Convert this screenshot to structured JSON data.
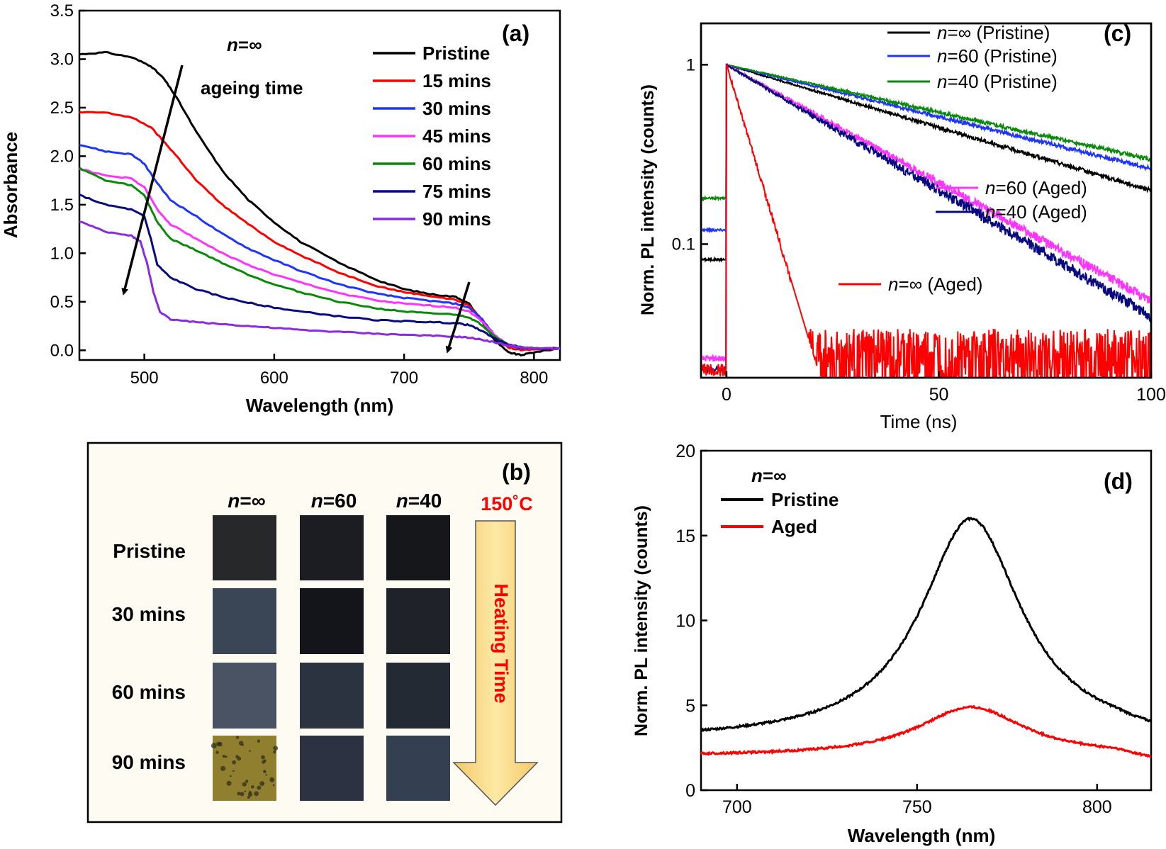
{
  "chart_data": [
    {
      "panel": "(a)",
      "type": "line",
      "xlabel": "Wavelength (nm)",
      "ylabel": "Absorbance",
      "xlim": [
        450,
        820
      ],
      "ylim": [
        -0.1,
        3.5
      ],
      "xticks": [
        500,
        600,
        700,
        800
      ],
      "yticks": [
        0.0,
        0.5,
        1.0,
        1.5,
        2.0,
        2.5,
        3.0,
        3.5
      ],
      "ytick_labels": [
        "0.0",
        "0.5",
        "1.0",
        "1.5",
        "2.0",
        "2.5",
        "3.0",
        "3.5"
      ],
      "annotation_n": "n",
      "annotation_n_value": "=∞",
      "annotation_text": "ageing time",
      "legend_position": "top-right",
      "series": [
        {
          "name": "Pristine",
          "color": "#000000",
          "x": [
            450,
            470,
            490,
            505,
            515,
            525,
            540,
            560,
            580,
            600,
            620,
            650,
            680,
            700,
            720,
            740,
            750,
            760,
            770,
            780,
            790,
            800,
            820
          ],
          "y": [
            3.05,
            3.07,
            3.02,
            2.93,
            2.8,
            2.6,
            2.25,
            1.85,
            1.55,
            1.32,
            1.12,
            0.9,
            0.72,
            0.63,
            0.58,
            0.55,
            0.48,
            0.3,
            0.1,
            -0.02,
            -0.05,
            -0.02,
            0.02
          ]
        },
        {
          "name": "15 mins",
          "color": "#ff0000",
          "x": [
            450,
            470,
            490,
            505,
            515,
            525,
            540,
            560,
            580,
            600,
            620,
            650,
            680,
            700,
            720,
            740,
            750,
            760,
            770,
            780,
            790,
            800,
            820
          ],
          "y": [
            2.45,
            2.45,
            2.4,
            2.3,
            2.15,
            2.0,
            1.75,
            1.5,
            1.3,
            1.12,
            0.98,
            0.8,
            0.66,
            0.6,
            0.56,
            0.52,
            0.46,
            0.32,
            0.14,
            0.03,
            0.0,
            0.01,
            0.02
          ]
        },
        {
          "name": "30 mins",
          "color": "#1e34ff",
          "x": [
            450,
            470,
            490,
            500,
            510,
            520,
            540,
            560,
            580,
            600,
            620,
            650,
            680,
            700,
            720,
            740,
            750,
            760,
            770,
            780,
            790,
            800,
            820
          ],
          "y": [
            2.12,
            2.05,
            2.02,
            1.92,
            1.72,
            1.55,
            1.38,
            1.2,
            1.05,
            0.93,
            0.82,
            0.68,
            0.58,
            0.54,
            0.51,
            0.48,
            0.44,
            0.32,
            0.15,
            0.05,
            0.02,
            0.02,
            0.02
          ]
        },
        {
          "name": "45 mins",
          "color": "#ff33ff",
          "x": [
            450,
            470,
            490,
            500,
            510,
            520,
            540,
            560,
            580,
            600,
            620,
            650,
            680,
            700,
            720,
            740,
            750,
            760,
            770,
            780,
            790,
            800,
            820
          ],
          "y": [
            1.87,
            1.8,
            1.77,
            1.68,
            1.45,
            1.3,
            1.15,
            1.0,
            0.88,
            0.78,
            0.7,
            0.59,
            0.51,
            0.48,
            0.46,
            0.44,
            0.4,
            0.3,
            0.15,
            0.06,
            0.03,
            0.02,
            0.02
          ]
        },
        {
          "name": "60 mins",
          "color": "#0a8a0a",
          "x": [
            450,
            470,
            490,
            500,
            510,
            520,
            540,
            560,
            580,
            600,
            620,
            650,
            680,
            700,
            720,
            740,
            750,
            760,
            770,
            780,
            790,
            800,
            820
          ],
          "y": [
            1.88,
            1.75,
            1.7,
            1.6,
            1.32,
            1.15,
            1.03,
            0.9,
            0.78,
            0.68,
            0.6,
            0.5,
            0.43,
            0.4,
            0.38,
            0.37,
            0.34,
            0.26,
            0.14,
            0.06,
            0.03,
            0.02,
            0.02
          ]
        },
        {
          "name": "75 mins",
          "color": "#0a0a80",
          "x": [
            450,
            470,
            490,
            500,
            505,
            510,
            520,
            540,
            560,
            580,
            600,
            620,
            650,
            680,
            700,
            720,
            740,
            750,
            760,
            770,
            780,
            790,
            800,
            820
          ],
          "y": [
            1.6,
            1.5,
            1.45,
            1.38,
            1.15,
            0.88,
            0.75,
            0.63,
            0.55,
            0.49,
            0.44,
            0.4,
            0.35,
            0.31,
            0.3,
            0.29,
            0.28,
            0.26,
            0.2,
            0.12,
            0.06,
            0.03,
            0.02,
            0.02
          ]
        },
        {
          "name": "90 mins",
          "color": "#8a2be2",
          "x": [
            450,
            470,
            490,
            497,
            502,
            507,
            512,
            520,
            540,
            560,
            580,
            600,
            620,
            650,
            680,
            700,
            720,
            740,
            750,
            760,
            770,
            780,
            790,
            800,
            820
          ],
          "y": [
            1.33,
            1.22,
            1.18,
            1.12,
            0.9,
            0.6,
            0.4,
            0.32,
            0.29,
            0.27,
            0.25,
            0.23,
            0.21,
            0.19,
            0.17,
            0.16,
            0.15,
            0.14,
            0.13,
            0.11,
            0.08,
            0.05,
            0.03,
            0.02,
            0.02
          ]
        }
      ]
    },
    {
      "panel": "(b)",
      "type": "table",
      "columns": [
        {
          "n": "n",
          "label": "=∞"
        },
        {
          "n": "n",
          "label": "=60"
        },
        {
          "n": "n",
          "label": "=40"
        }
      ],
      "temperature": "150˚C",
      "arrow_label": "Heating Time",
      "rows": [
        "Pristine",
        "30 mins",
        "60 mins",
        "90 mins"
      ],
      "swatch_colors": [
        [
          "#26282a",
          "#1b1d22",
          "#16171b"
        ],
        [
          "#3a4656",
          "#13151a",
          "#1f2228"
        ],
        [
          "#4a5363",
          "#2b3340",
          "#242a33"
        ],
        [
          "#8f7f2e",
          "#2c3242",
          "#344052"
        ]
      ]
    },
    {
      "panel": "(c)",
      "type": "line",
      "xlabel": "Time (ns)",
      "ylabel": "Norm. PL intensity (counts)",
      "yscale": "log",
      "xlim": [
        -6,
        100
      ],
      "ylim": [
        0.018,
        1.7
      ],
      "xticks": [
        0,
        50,
        100
      ],
      "yticks": [
        0.1,
        1
      ],
      "ytick_labels": [
        "0.1",
        "1"
      ],
      "legend_position": "top-right",
      "series": [
        {
          "name": "=∞   (Pristine)",
          "color": "#000000",
          "baseline": 0.082,
          "tau": 62,
          "noise": 0.05
        },
        {
          "name": "=60  (Pristine)",
          "color": "#1e34ff",
          "baseline": 0.12,
          "tau": 75,
          "noise": 0.05
        },
        {
          "name": "=40  (Pristine)",
          "color": "#0a8a0a",
          "baseline": 0.18,
          "tau": 82,
          "noise": 0.05
        },
        {
          "name": "=60 (Aged)",
          "color": "#ff33ff",
          "baseline": 0.023,
          "tau": 33,
          "noise": 0.12
        },
        {
          "name": "=40 (Aged)",
          "color": "#0a0a80",
          "baseline": 0.02,
          "tau": 31,
          "noise": 0.14
        },
        {
          "name": "=∞ (Aged)",
          "color": "#ff0000",
          "baseline": 0.02,
          "tau": 5.5,
          "floor": 0.025,
          "noise": 0.28
        }
      ]
    },
    {
      "panel": "(d)",
      "type": "line",
      "xlabel": "Wavelength (nm)",
      "ylabel": "Norm. PL intensity (counts)",
      "xlim": [
        690,
        815
      ],
      "ylim": [
        0,
        20
      ],
      "xticks": [
        700,
        750,
        800
      ],
      "yticks": [
        0,
        5,
        10,
        15,
        20
      ],
      "annotation_n": "n",
      "annotation_n_value": "=∞",
      "legend_position": "top-left",
      "series": [
        {
          "name": "Pristine",
          "color": "#000000",
          "peak_nm": 765,
          "peak": 16.0,
          "base": 2.9,
          "width": 17
        },
        {
          "name": "Aged",
          "color": "#ff0000",
          "peak_nm": 765,
          "peak": 4.9,
          "base": 2.0,
          "width": 18
        }
      ]
    }
  ],
  "panel_labels": [
    "(a)",
    "(b)",
    "(c)",
    "(d)"
  ]
}
